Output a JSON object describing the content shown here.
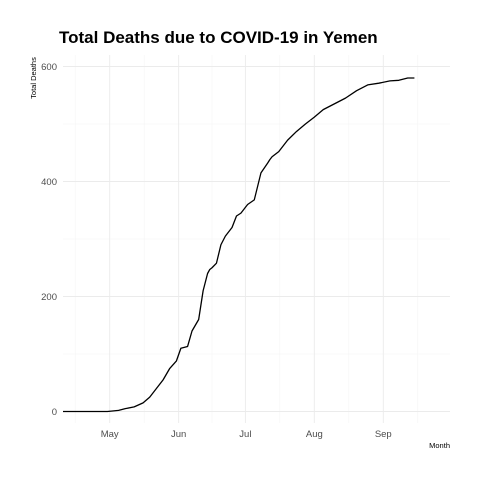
{
  "chart_data": {
    "type": "line",
    "title": "Total Deaths due to COVID-19 in Yemen",
    "xlabel": "Month",
    "ylabel": "Total Deaths",
    "xlim": [
      "2020-04-10",
      "2020-10-01"
    ],
    "ylim": [
      -20,
      620
    ],
    "grid": true,
    "x_ticks": [
      {
        "date": "2020-05-01",
        "label": "May"
      },
      {
        "date": "2020-06-01",
        "label": "Jun"
      },
      {
        "date": "2020-07-01",
        "label": "Jul"
      },
      {
        "date": "2020-08-01",
        "label": "Aug"
      },
      {
        "date": "2020-09-01",
        "label": "Sep"
      }
    ],
    "y_ticks": [
      0,
      200,
      400,
      600
    ],
    "series": [
      {
        "color": "#000000",
        "x": [
          "2020-04-10",
          "2020-04-30",
          "2020-05-05",
          "2020-05-08",
          "2020-05-12",
          "2020-05-16",
          "2020-05-19",
          "2020-05-22",
          "2020-05-25",
          "2020-05-28",
          "2020-05-31",
          "2020-06-02",
          "2020-06-05",
          "2020-06-07",
          "2020-06-10",
          "2020-06-12",
          "2020-06-14",
          "2020-06-15",
          "2020-06-16",
          "2020-06-18",
          "2020-06-20",
          "2020-06-22",
          "2020-06-25",
          "2020-06-27",
          "2020-06-29",
          "2020-07-02",
          "2020-07-05",
          "2020-07-08",
          "2020-07-11",
          "2020-07-12",
          "2020-07-13",
          "2020-07-16",
          "2020-07-20",
          "2020-07-24",
          "2020-07-28",
          "2020-08-01",
          "2020-08-05",
          "2020-08-10",
          "2020-08-15",
          "2020-08-20",
          "2020-08-25",
          "2020-08-30",
          "2020-09-04",
          "2020-09-08",
          "2020-09-12",
          "2020-09-15"
        ],
        "y": [
          0,
          0,
          2,
          5,
          8,
          15,
          25,
          40,
          55,
          75,
          88,
          110,
          113,
          140,
          160,
          210,
          240,
          247,
          250,
          258,
          290,
          305,
          320,
          340,
          345,
          360,
          368,
          415,
          432,
          438,
          443,
          452,
          472,
          487,
          500,
          512,
          525,
          535,
          545,
          558,
          568,
          571,
          575,
          576,
          580,
          580
        ]
      }
    ]
  }
}
